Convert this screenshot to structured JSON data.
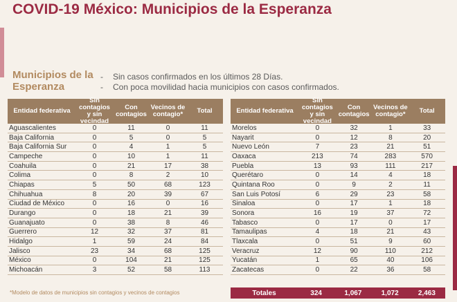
{
  "title": "COVID-19 México: Municipios de la Esperanza",
  "subtitle": "Municipios de la Esperanza",
  "bullets": [
    "Sin casos confirmados en los últimos 28 Días.",
    "Con poca movilidad hacia municipios con casos confirmados."
  ],
  "headers": [
    "Entidad federativa",
    "Sin contagios y sin vecindad",
    "Con contagios",
    "Vecinos de contagio*",
    "Total"
  ],
  "left_rows": [
    [
      "Aguascalientes",
      "0",
      "11",
      "0",
      "11"
    ],
    [
      "Baja California",
      "0",
      "5",
      "0",
      "5"
    ],
    [
      "Baja California Sur",
      "0",
      "4",
      "1",
      "5"
    ],
    [
      "Campeche",
      "0",
      "10",
      "1",
      "11"
    ],
    [
      "Coahuila",
      "0",
      "21",
      "17",
      "38"
    ],
    [
      "Colima",
      "0",
      "8",
      "2",
      "10"
    ],
    [
      "Chiapas",
      "5",
      "50",
      "68",
      "123"
    ],
    [
      "Chihuahua",
      "8",
      "20",
      "39",
      "67"
    ],
    [
      "Ciudad de México",
      "0",
      "16",
      "0",
      "16"
    ],
    [
      "Durango",
      "0",
      "18",
      "21",
      "39"
    ],
    [
      "Guanajuato",
      "0",
      "38",
      "8",
      "46"
    ],
    [
      "Guerrero",
      "12",
      "32",
      "37",
      "81"
    ],
    [
      "Hidalgo",
      "1",
      "59",
      "24",
      "84"
    ],
    [
      "Jalisco",
      "23",
      "34",
      "68",
      "125"
    ],
    [
      "México",
      "0",
      "104",
      "21",
      "125"
    ],
    [
      "Michoacán",
      "3",
      "52",
      "58",
      "113"
    ]
  ],
  "right_rows": [
    [
      "Morelos",
      "0",
      "32",
      "1",
      "33"
    ],
    [
      "Nayarit",
      "0",
      "12",
      "8",
      "20"
    ],
    [
      "Nuevo León",
      "7",
      "23",
      "21",
      "51"
    ],
    [
      "Oaxaca",
      "213",
      "74",
      "283",
      "570"
    ],
    [
      "Puebla",
      "13",
      "93",
      "111",
      "217"
    ],
    [
      "Querétaro",
      "0",
      "14",
      "4",
      "18"
    ],
    [
      "Quintana Roo",
      "0",
      "9",
      "2",
      "11"
    ],
    [
      "San Luis Potosí",
      "6",
      "29",
      "23",
      "58"
    ],
    [
      "Sinaloa",
      "0",
      "17",
      "1",
      "18"
    ],
    [
      "Sonora",
      "16",
      "19",
      "37",
      "72"
    ],
    [
      "Tabasco",
      "0",
      "17",
      "0",
      "17"
    ],
    [
      "Tamaulipas",
      "4",
      "18",
      "21",
      "43"
    ],
    [
      "Tlaxcala",
      "0",
      "51",
      "9",
      "60"
    ],
    [
      "Veracruz",
      "12",
      "90",
      "110",
      "212"
    ],
    [
      "Yucatán",
      "1",
      "65",
      "40",
      "106"
    ],
    [
      "Zacatecas",
      "0",
      "22",
      "36",
      "58"
    ]
  ],
  "totals": [
    "Totales",
    "324",
    "1,067",
    "1,072",
    "2,463"
  ],
  "footnote": "*Modelo de datos de municipios sin contagios y vecinos de contagios",
  "colors": {
    "accent": "#9b2a43",
    "header": "#9b7e61",
    "gold": "#b28a60"
  }
}
